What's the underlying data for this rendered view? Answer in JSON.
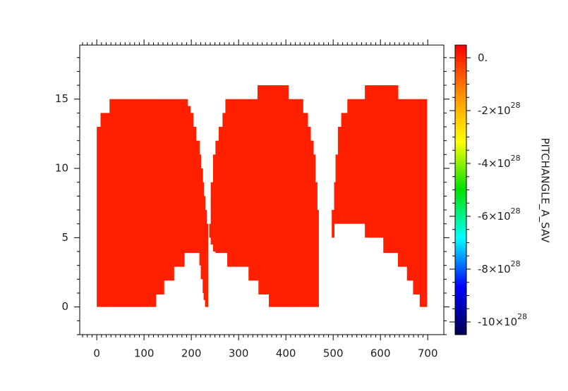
{
  "chart_data": {
    "type": "filled-range",
    "x": [
      0,
      8,
      27,
      125,
      142,
      163,
      185,
      192,
      198,
      204,
      210,
      217,
      220,
      224,
      226,
      229,
      232,
      235,
      238,
      241,
      246,
      251,
      258,
      266,
      272,
      276,
      321,
      340,
      342,
      364,
      405,
      436,
      446,
      452,
      458,
      462,
      466,
      469,
      497,
      502,
      505,
      510,
      517,
      530,
      567,
      606,
      637,
      656,
      669,
      683,
      698
    ],
    "upper": [
      13,
      14,
      15,
      15,
      15,
      15,
      15,
      14.5,
      14,
      13,
      12,
      11,
      10,
      9,
      8,
      7,
      6,
      null,
      6,
      9,
      11,
      12,
      13,
      14,
      15,
      15,
      15,
      16,
      16,
      16,
      15,
      14,
      13,
      12,
      11,
      9,
      7,
      null,
      7,
      9,
      11,
      13,
      14,
      15,
      16,
      16,
      15,
      15,
      15,
      15,
      15
    ],
    "lower": [
      0,
      0,
      0,
      0.9,
      1.9,
      2.9,
      3.9,
      3.9,
      3.9,
      3.9,
      3.9,
      3,
      2,
      1,
      0.5,
      0,
      0,
      null,
      5,
      4.5,
      4,
      3.9,
      3.9,
      3.9,
      3.9,
      2.9,
      1.9,
      1.9,
      0.9,
      0,
      0,
      0,
      0,
      0,
      0,
      0,
      0,
      null,
      5,
      6,
      6,
      6,
      6,
      6,
      5,
      3.9,
      2.9,
      1.9,
      0.9,
      0,
      0
    ],
    "color": "#ff2000",
    "xlim": [
      -36,
      734
    ],
    "xticks": [
      0,
      100,
      200,
      300,
      400,
      500,
      600,
      700
    ],
    "ylim": [
      -2,
      18.9
    ],
    "yticks": [
      0,
      5,
      10,
      15
    ],
    "colorbar": {
      "label": "PITCHANGLE_A_SAV",
      "lim": [
        -1.048e+29,
        4.8e+27
      ],
      "colormap": [
        "#ff0000",
        "#ff8c00",
        "#ffff00",
        "#00e000",
        "#00ffff",
        "#0000ff",
        "#000050"
      ],
      "ticks": [
        {
          "value": 0,
          "label": "0."
        },
        {
          "value": -2e+28,
          "label": "-2×10",
          "superscript": "28"
        },
        {
          "value": -4e+28,
          "label": "-4×10",
          "superscript": "28"
        },
        {
          "value": -6e+28,
          "label": "-6×10",
          "superscript": "28"
        },
        {
          "value": -8e+28,
          "label": "-8×10",
          "superscript": "28"
        },
        {
          "value": -1e+29,
          "label": "-10×10",
          "superscript": "28"
        }
      ]
    }
  }
}
